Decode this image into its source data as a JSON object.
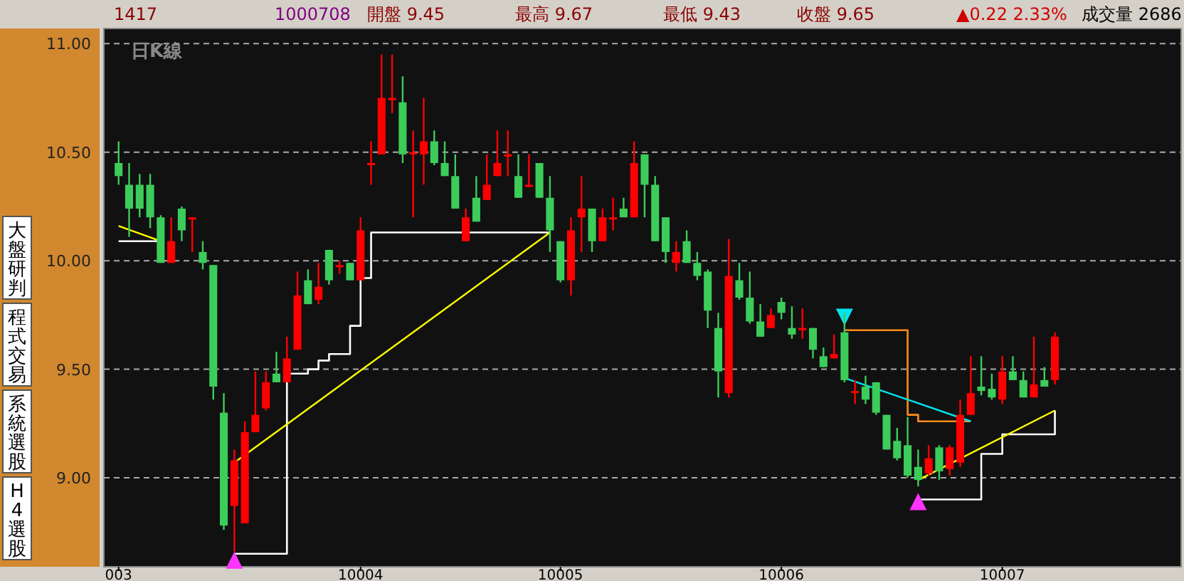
{
  "chart_data": {
    "type": "candlestick",
    "subtitle": "日K線",
    "annotations": [
      "1417",
      "1000708",
      "開盤 9.45",
      "最高 9.67",
      "最低 9.43",
      "收盤 9.65",
      "▲0.22 2.33%",
      "成交量 2686",
      "大盤研判",
      "程式交易",
      "系統選股",
      "H4選股"
    ],
    "categories": [
      "003",
      null,
      null,
      null,
      null,
      null,
      null,
      null,
      null,
      null,
      null,
      null,
      null,
      null,
      null,
      null,
      null,
      null,
      null,
      null,
      null,
      null,
      null,
      "10004",
      null,
      null,
      null,
      null,
      null,
      null,
      null,
      null,
      null,
      null,
      null,
      null,
      null,
      null,
      null,
      null,
      null,
      null,
      "10005",
      null,
      null,
      null,
      null,
      null,
      null,
      null,
      null,
      null,
      null,
      null,
      null,
      null,
      null,
      null,
      null,
      null,
      null,
      null,
      null,
      "10006",
      null,
      null,
      null,
      null,
      null,
      null,
      null,
      null,
      null,
      null,
      null,
      null,
      null,
      null,
      null,
      null,
      null,
      null,
      null,
      null,
      "10007",
      null,
      null,
      null,
      null,
      null
    ],
    "ohlc": [
      [
        10.45,
        10.55,
        10.35,
        10.39
      ],
      [
        10.35,
        10.45,
        10.11,
        10.24
      ],
      [
        10.35,
        10.4,
        10.2,
        10.24
      ],
      [
        10.35,
        10.4,
        10.15,
        10.2
      ],
      [
        10.2,
        10.21,
        9.99,
        9.99
      ],
      [
        9.99,
        10.2,
        9.99,
        10.09
      ],
      [
        10.24,
        10.25,
        10.09,
        10.14
      ],
      [
        10.19,
        10.2,
        10.04,
        10.2
      ],
      [
        10.04,
        10.09,
        9.96,
        9.99
      ],
      [
        9.98,
        9.98,
        9.36,
        9.42
      ],
      [
        9.3,
        9.39,
        8.76,
        8.78
      ],
      [
        8.87,
        9.13,
        8.66,
        9.08
      ],
      [
        8.79,
        9.26,
        8.79,
        9.21
      ],
      [
        9.21,
        9.49,
        9.21,
        9.29
      ],
      [
        9.32,
        9.49,
        9.31,
        9.44
      ],
      [
        9.48,
        9.58,
        9.44,
        9.44
      ],
      [
        9.44,
        9.65,
        9.44,
        9.55
      ],
      [
        9.59,
        9.95,
        9.59,
        9.84
      ],
      [
        9.91,
        9.96,
        9.8,
        9.8
      ],
      [
        9.82,
        9.99,
        9.8,
        9.88
      ],
      [
        10.05,
        10.05,
        9.89,
        9.91
      ],
      [
        9.97,
        10.0,
        9.94,
        9.98
      ],
      [
        9.99,
        9.99,
        9.91,
        9.91
      ],
      [
        9.91,
        10.2,
        9.91,
        10.14
      ],
      [
        10.44,
        10.55,
        10.35,
        10.45
      ],
      [
        10.49,
        10.95,
        10.49,
        10.75
      ],
      [
        10.74,
        10.95,
        10.68,
        10.75
      ],
      [
        10.73,
        10.85,
        10.45,
        10.49
      ],
      [
        10.49,
        10.6,
        10.2,
        10.5
      ],
      [
        10.49,
        10.75,
        10.35,
        10.55
      ],
      [
        10.55,
        10.6,
        10.44,
        10.45
      ],
      [
        10.45,
        10.55,
        10.39,
        10.39
      ],
      [
        10.39,
        10.49,
        10.24,
        10.24
      ],
      [
        10.09,
        10.24,
        10.09,
        10.2
      ],
      [
        10.29,
        10.39,
        10.18,
        10.18
      ],
      [
        10.28,
        10.49,
        10.28,
        10.35
      ],
      [
        10.39,
        10.6,
        10.39,
        10.45
      ],
      [
        10.48,
        10.6,
        10.39,
        10.49
      ],
      [
        10.39,
        10.49,
        10.29,
        10.29
      ],
      [
        10.34,
        10.49,
        10.34,
        10.35
      ],
      [
        10.45,
        10.45,
        10.29,
        10.29
      ],
      [
        10.29,
        10.39,
        10.04,
        10.14
      ],
      [
        10.09,
        10.09,
        9.9,
        9.91
      ],
      [
        9.91,
        10.2,
        9.84,
        10.14
      ],
      [
        10.2,
        10.39,
        10.04,
        10.24
      ],
      [
        10.24,
        10.24,
        10.04,
        10.09
      ],
      [
        10.09,
        10.24,
        10.09,
        10.2
      ],
      [
        10.19,
        10.29,
        10.14,
        10.2
      ],
      [
        10.24,
        10.29,
        10.2,
        10.2
      ],
      [
        10.2,
        10.55,
        10.2,
        10.45
      ],
      [
        10.49,
        10.49,
        10.2,
        10.35
      ],
      [
        10.35,
        10.39,
        10.09,
        10.09
      ],
      [
        10.2,
        10.2,
        9.99,
        10.04
      ],
      [
        9.99,
        10.09,
        9.95,
        10.04
      ],
      [
        10.09,
        10.14,
        9.99,
        9.99
      ],
      [
        9.99,
        10.04,
        9.91,
        9.93
      ],
      [
        9.95,
        9.96,
        9.69,
        9.77
      ],
      [
        9.69,
        9.76,
        9.37,
        9.49
      ],
      [
        9.39,
        10.1,
        9.37,
        9.93
      ],
      [
        9.91,
        9.99,
        9.82,
        9.83
      ],
      [
        9.83,
        9.95,
        9.71,
        9.72
      ],
      [
        9.72,
        9.8,
        9.65,
        9.65
      ],
      [
        9.69,
        9.78,
        9.69,
        9.75
      ],
      [
        9.81,
        9.83,
        9.73,
        9.76
      ],
      [
        9.69,
        9.79,
        9.64,
        9.66
      ],
      [
        9.68,
        9.78,
        9.64,
        9.69
      ],
      [
        9.69,
        9.69,
        9.55,
        9.59
      ],
      [
        9.56,
        9.6,
        9.51,
        9.51
      ],
      [
        9.55,
        9.66,
        9.55,
        9.57
      ],
      [
        9.67,
        9.76,
        9.44,
        9.45
      ],
      [
        9.39,
        9.45,
        9.34,
        9.4
      ],
      [
        9.42,
        9.47,
        9.34,
        9.36
      ],
      [
        9.44,
        9.44,
        9.29,
        9.3
      ],
      [
        9.29,
        9.29,
        9.13,
        9.13
      ],
      [
        9.17,
        9.23,
        9.08,
        9.09
      ],
      [
        9.15,
        9.28,
        9.0,
        9.01
      ],
      [
        9.05,
        9.13,
        8.96,
        8.99
      ],
      [
        9.02,
        9.15,
        9.01,
        9.09
      ],
      [
        9.14,
        9.15,
        8.99,
        9.03
      ],
      [
        9.04,
        9.15,
        9.01,
        9.14
      ],
      [
        9.07,
        9.36,
        9.05,
        9.29
      ],
      [
        9.29,
        9.56,
        9.29,
        9.39
      ],
      [
        9.42,
        9.56,
        9.38,
        9.4
      ],
      [
        9.41,
        9.48,
        9.36,
        9.37
      ],
      [
        9.36,
        9.56,
        9.34,
        9.49
      ],
      [
        9.49,
        9.56,
        9.45,
        9.45
      ],
      [
        9.45,
        9.49,
        9.37,
        9.37
      ],
      [
        9.37,
        9.65,
        9.37,
        9.43
      ],
      [
        9.45,
        9.51,
        9.42,
        9.42
      ],
      [
        9.45,
        9.67,
        9.43,
        9.65
      ]
    ],
    "colors": [
      "#3ccc5a",
      "#3ccc5a",
      "#3ccc5a",
      "#3ccc5a",
      "#3ccc5a",
      "#ff0000",
      "#3ccc5a",
      "#ff0000",
      "#3ccc5a",
      "#3ccc5a",
      "#3ccc5a",
      "#ff0000",
      "#ff0000",
      "#ff0000",
      "#ff0000",
      "#3ccc5a",
      "#ff0000",
      "#ff0000",
      "#3ccc5a",
      "#ff0000",
      "#3ccc5a",
      "#ff0000",
      "#3ccc5a",
      "#ff0000",
      "#ff0000",
      "#ff0000",
      "#ff0000",
      "#3ccc5a",
      "#ff0000",
      "#ff0000",
      "#3ccc5a",
      "#3ccc5a",
      "#3ccc5a",
      "#ff0000",
      "#3ccc5a",
      "#ff0000",
      "#ff0000",
      "#ff0000",
      "#3ccc5a",
      "#ff0000",
      "#3ccc5a",
      "#3ccc5a",
      "#3ccc5a",
      "#ff0000",
      "#ff0000",
      "#3ccc5a",
      "#ff0000",
      "#ff0000",
      "#3ccc5a",
      "#ff0000",
      "#3ccc5a",
      "#3ccc5a",
      "#3ccc5a",
      "#ff0000",
      "#3ccc5a",
      "#3ccc5a",
      "#3ccc5a",
      "#3ccc5a",
      "#ff0000",
      "#3ccc5a",
      "#3ccc5a",
      "#3ccc5a",
      "#ff0000",
      "#3ccc5a",
      "#3ccc5a",
      "#ff0000",
      "#3ccc5a",
      "#3ccc5a",
      "#ff0000",
      "#3ccc5a",
      "#ff0000",
      "#3ccc5a",
      "#3ccc5a",
      "#3ccc5a",
      "#3ccc5a",
      "#3ccc5a",
      "#3ccc5a",
      "#ff0000",
      "#3ccc5a",
      "#ff0000",
      "#ff0000",
      "#ff0000",
      "#3ccc5a",
      "#3ccc5a",
      "#ff0000",
      "#3ccc5a",
      "#3ccc5a",
      "#ff0000",
      "#3ccc5a",
      "#ff0000"
    ],
    "ylim": [
      8.59,
      11.07
    ],
    "yticks": [
      {
        "value": 9,
        "label": "9.00"
      },
      {
        "value": 9.5,
        "label": "9.50"
      },
      {
        "value": 10,
        "label": "10.00"
      },
      {
        "value": 10.5,
        "label": "10.50"
      },
      {
        "value": 11,
        "label": "11.00"
      }
    ],
    "grid": "y",
    "series": [
      {
        "type": "step",
        "color": "#ffffff",
        "values": [
          10.09,
          10.09,
          10.09,
          10.09,
          10.09,
          null,
          null,
          null,
          null,
          null,
          null,
          8.65,
          8.65,
          8.65,
          8.65,
          8.65,
          9.48,
          9.48,
          9.5,
          9.54,
          9.57,
          9.57,
          9.7,
          9.92,
          10.13,
          10.13,
          10.13,
          10.13,
          10.13,
          10.13,
          10.13,
          10.13,
          10.13,
          10.13,
          10.13,
          10.13,
          10.13,
          10.13,
          10.13,
          10.13,
          10.13,
          10.13,
          null,
          null,
          null,
          null,
          null,
          null,
          null,
          null,
          null,
          null,
          null,
          null,
          null,
          null,
          null,
          null,
          null,
          null,
          null,
          null,
          null,
          null,
          null,
          null,
          null,
          null,
          null,
          null,
          null,
          null,
          null,
          null,
          null,
          null,
          8.9,
          8.9,
          8.9,
          8.9,
          8.9,
          8.9,
          9.11,
          9.11,
          9.2,
          9.2,
          9.2,
          9.2,
          9.2,
          9.31
        ]
      },
      {
        "type": "step",
        "color": "#ff8c1a",
        "values": [
          null,
          null,
          null,
          null,
          null,
          null,
          null,
          null,
          null,
          null,
          null,
          null,
          null,
          null,
          null,
          null,
          null,
          null,
          null,
          null,
          null,
          null,
          null,
          null,
          null,
          null,
          null,
          null,
          null,
          null,
          null,
          null,
          null,
          null,
          null,
          null,
          null,
          null,
          null,
          null,
          null,
          null,
          null,
          null,
          null,
          null,
          null,
          null,
          null,
          null,
          null,
          null,
          null,
          null,
          null,
          null,
          null,
          null,
          null,
          null,
          null,
          null,
          null,
          null,
          null,
          null,
          null,
          null,
          null,
          9.68,
          9.68,
          9.68,
          9.68,
          9.68,
          9.68,
          9.29,
          9.26,
          9.26,
          9.26,
          9.26,
          9.26,
          9.26,
          null,
          null,
          null,
          null,
          null,
          null,
          null,
          null
        ]
      },
      {
        "type": "line",
        "color": "#ffff00",
        "values": [
          10.16,
          null,
          null,
          null,
          10.09,
          null,
          null,
          null,
          null,
          null,
          null,
          null,
          null,
          null,
          null,
          null,
          null,
          null,
          null,
          null,
          null,
          null,
          null,
          null,
          null,
          null,
          null,
          null,
          null,
          null,
          null,
          null,
          null,
          null,
          null,
          null,
          null,
          null,
          null,
          null,
          null,
          null,
          null,
          null,
          null,
          null,
          null,
          null,
          null,
          null,
          null,
          null,
          null,
          null,
          null,
          null,
          null,
          null,
          null,
          null,
          null,
          null,
          null,
          null,
          null,
          null,
          null,
          null,
          null,
          null,
          null,
          null,
          null,
          null,
          null,
          null,
          null,
          null,
          null,
          null,
          null,
          null,
          null,
          null,
          null,
          null,
          null,
          null,
          null,
          null
        ]
      },
      {
        "type": "line",
        "color": "#ffff00",
        "values": [
          null,
          null,
          null,
          null,
          null,
          null,
          null,
          null,
          null,
          null,
          null,
          9.07,
          null,
          null,
          null,
          null,
          null,
          null,
          null,
          null,
          null,
          null,
          null,
          null,
          null,
          null,
          null,
          null,
          null,
          null,
          null,
          null,
          null,
          null,
          null,
          null,
          null,
          null,
          null,
          null,
          null,
          10.13,
          null,
          null,
          null,
          null,
          null,
          null,
          null,
          null,
          null,
          null,
          null,
          null,
          null,
          null,
          null,
          null,
          null,
          null,
          null,
          null,
          null,
          null,
          null,
          null,
          null,
          null,
          null,
          null,
          null,
          null,
          null,
          null,
          null,
          null,
          null,
          null,
          null,
          null,
          null,
          null,
          null,
          null,
          null,
          null,
          null,
          null,
          null,
          null
        ]
      },
      {
        "type": "line",
        "color": "#ffff00",
        "values": [
          null,
          null,
          null,
          null,
          null,
          null,
          null,
          null,
          null,
          null,
          null,
          null,
          null,
          null,
          null,
          null,
          null,
          null,
          null,
          null,
          null,
          null,
          null,
          null,
          null,
          null,
          null,
          null,
          null,
          null,
          null,
          null,
          null,
          null,
          null,
          null,
          null,
          null,
          null,
          null,
          null,
          null,
          null,
          null,
          null,
          null,
          null,
          null,
          null,
          null,
          null,
          null,
          null,
          null,
          null,
          null,
          null,
          null,
          null,
          null,
          null,
          null,
          null,
          null,
          null,
          null,
          null,
          null,
          null,
          null,
          null,
          null,
          null,
          null,
          null,
          null,
          8.99,
          null,
          null,
          null,
          null,
          null,
          null,
          null,
          null,
          null,
          null,
          null,
          null,
          9.31
        ]
      },
      {
        "type": "line",
        "color": "#00e5ee",
        "values": [
          null,
          null,
          null,
          null,
          null,
          null,
          null,
          null,
          null,
          null,
          null,
          null,
          null,
          null,
          null,
          null,
          null,
          null,
          null,
          null,
          null,
          null,
          null,
          null,
          null,
          null,
          null,
          null,
          null,
          null,
          null,
          null,
          null,
          null,
          null,
          null,
          null,
          null,
          null,
          null,
          null,
          null,
          null,
          null,
          null,
          null,
          null,
          null,
          null,
          null,
          null,
          null,
          null,
          null,
          null,
          null,
          null,
          null,
          null,
          null,
          null,
          null,
          null,
          null,
          null,
          null,
          null,
          null,
          null,
          9.46,
          null,
          null,
          null,
          null,
          null,
          null,
          null,
          null,
          null,
          null,
          null,
          9.26,
          null,
          null,
          null,
          null,
          null,
          null,
          null,
          null
        ]
      },
      {
        "type": "scatter",
        "color": "#ff33ff",
        "marker": "triangle",
        "values": [
          null,
          null,
          null,
          null,
          null,
          null,
          null,
          null,
          null,
          null,
          null,
          8.62,
          null,
          null,
          null,
          null,
          null,
          null,
          null,
          null,
          null,
          null,
          null,
          null,
          null,
          null,
          null,
          null,
          null,
          null,
          null,
          null,
          null,
          null,
          null,
          null,
          null,
          null,
          null,
          null,
          null,
          null,
          null,
          null,
          null,
          null,
          null,
          null,
          null,
          null,
          null,
          null,
          null,
          null,
          null,
          null,
          null,
          null,
          null,
          null,
          null,
          null,
          null,
          null,
          null,
          null,
          null,
          null,
          null,
          null,
          null,
          null,
          null,
          null,
          null,
          null,
          8.89,
          null,
          null,
          null,
          null,
          null,
          null,
          null,
          null,
          null,
          null,
          null,
          null,
          null
        ]
      },
      {
        "type": "scatter",
        "color": "#00e5ee",
        "marker": "triangle",
        "values": [
          null,
          null,
          null,
          null,
          null,
          null,
          null,
          null,
          null,
          null,
          null,
          null,
          null,
          null,
          null,
          null,
          null,
          null,
          null,
          null,
          null,
          null,
          null,
          null,
          null,
          null,
          null,
          null,
          null,
          null,
          null,
          null,
          null,
          null,
          null,
          null,
          null,
          null,
          null,
          null,
          null,
          null,
          null,
          null,
          null,
          null,
          null,
          null,
          null,
          null,
          null,
          null,
          null,
          null,
          null,
          null,
          null,
          null,
          null,
          null,
          null,
          null,
          null,
          null,
          null,
          null,
          null,
          null,
          null,
          9.74,
          null,
          null,
          null,
          null,
          null,
          null,
          null,
          null,
          null,
          null,
          null,
          null,
          null,
          null,
          null,
          null,
          null,
          null,
          null,
          null
        ]
      }
    ]
  }
}
